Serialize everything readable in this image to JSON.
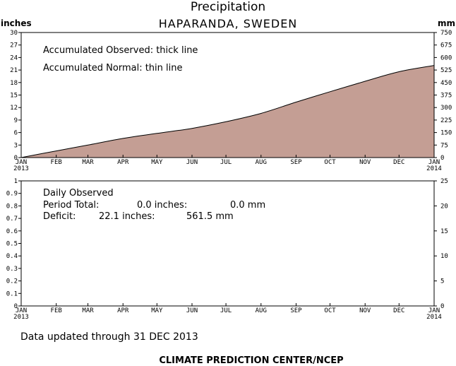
{
  "title": "Precipitation",
  "subtitle": "HAPARANDA, SWEDEN",
  "footer_updated": "Data updated through 31 DEC 2013",
  "footer_credit": "CLIMATE PREDICTION CENTER/NCEP",
  "chart_data": [
    {
      "type": "area",
      "left_axis_label": "inches",
      "right_axis_label": "mm",
      "annotation_observed": "Accumulated Observed: thick line",
      "annotation_normal": "Accumulated Normal: thin line",
      "ylim": [
        0,
        30
      ],
      "yticks": [
        "0",
        "3",
        "6",
        "9",
        "12",
        "15",
        "18",
        "21",
        "24",
        "27",
        "30"
      ],
      "y2lim": [
        0,
        750
      ],
      "y2ticks": [
        "0",
        "75",
        "150",
        "225",
        "300",
        "375",
        "450",
        "525",
        "600",
        "675",
        "750"
      ],
      "x_month_labels": [
        "JAN",
        "FEB",
        "MAR",
        "APR",
        "MAY",
        "JUN",
        "JUL",
        "AUG",
        "SEP",
        "OCT",
        "NOV",
        "DEC",
        "JAN"
      ],
      "x_start_year": "2013",
      "x_end_year": "2014",
      "fill_color": "#c49e94",
      "series": [
        {
          "x": [
            "2013-01-01",
            "2013-02-01",
            "2013-03-01",
            "2013-04-01",
            "2013-05-01",
            "2013-06-01",
            "2013-07-01",
            "2013-08-01",
            "2013-09-01",
            "2013-10-01",
            "2013-11-01",
            "2013-12-01",
            "2014-01-01"
          ],
          "values": [
            0.0,
            1.6,
            3.0,
            4.6,
            5.8,
            7.0,
            8.6,
            10.6,
            13.3,
            15.8,
            18.3,
            20.6,
            22.1
          ]
        }
      ]
    },
    {
      "type": "bar",
      "panel_title": "Daily Observed",
      "period_label": "Period Total:",
      "period_inches": "0.0 inches:",
      "period_mm": "0.0 mm",
      "deficit_label": "Deficit:",
      "deficit_inches": "22.1 inches:",
      "deficit_mm": "561.5 mm",
      "ylim": [
        0,
        1
      ],
      "yticks": [
        "0",
        "0.1",
        "0.2",
        "0.3",
        "0.4",
        "0.5",
        "0.6",
        "0.7",
        "0.8",
        "0.9",
        "1"
      ],
      "y2lim": [
        0,
        25
      ],
      "y2ticks": [
        "0",
        "5",
        "10",
        "15",
        "20",
        "25"
      ],
      "x_month_labels": [
        "JAN",
        "FEB",
        "MAR",
        "APR",
        "MAY",
        "JUN",
        "JUL",
        "AUG",
        "SEP",
        "OCT",
        "NOV",
        "DEC",
        "JAN"
      ],
      "x_start_year": "2013",
      "x_end_year": "2014",
      "values": []
    }
  ]
}
